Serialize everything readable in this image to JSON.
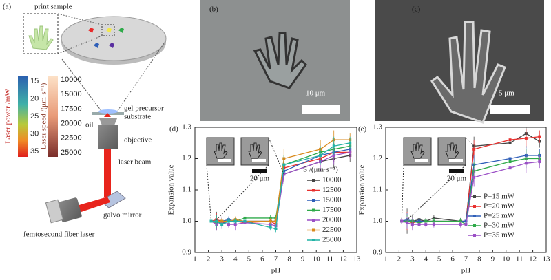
{
  "panel_a": {
    "label": "(a)",
    "print_sample": "print sample",
    "power_label": "Laser power /mW",
    "power_ticks": [
      15,
      20,
      25,
      30,
      35
    ],
    "speed_label": "Laser speed /(μm·s⁻¹)",
    "speed_ticks": [
      10000,
      15000,
      17500,
      20000,
      22500,
      25000
    ],
    "gel": "gel precursor",
    "substrate": "substrate",
    "oil": "oil",
    "objective": "objective",
    "beam": "laser beam",
    "galvo": "galvo mirror",
    "laser": "femtosecond fiber laser"
  },
  "panel_b": {
    "label": "(b)",
    "scale": "10 μm"
  },
  "panel_c": {
    "label": "(c)",
    "scale": "5 μm"
  },
  "chart_data": [
    {
      "type": "line",
      "panel": "(d)",
      "xlabel": "pH",
      "ylabel": "Expansion value",
      "legend_title": "S /(μm·s⁻¹)",
      "inset_scale": "20 μm",
      "x": [
        2.2,
        2.6,
        3.0,
        3.5,
        4.0,
        4.7,
        6.6,
        7.0,
        7.6,
        10.3,
        11.3,
        12.5
      ],
      "xlim": [
        1,
        13
      ],
      "xticks": [
        1,
        2,
        3,
        4,
        5,
        6,
        7,
        8,
        9,
        10,
        11,
        12,
        13
      ],
      "ylim": [
        0.9,
        1.3
      ],
      "yticks": [
        0.9,
        {
          "value": 1,
          "label": "1.0"
        },
        1.1,
        1.2,
        1.3
      ],
      "series": [
        {
          "name": "10000",
          "color": "#444444",
          "values": [
            1.0,
            1.0,
            0.995,
            1.0,
            1.0,
            1.0,
            1.0,
            1.0,
            1.15,
            1.19,
            1.2,
            1.21
          ],
          "errors": [
            0.01,
            0.03,
            0.01,
            0.01,
            0.01,
            0.01,
            0.01,
            0.01,
            0.03,
            0.03,
            0.03,
            0.02
          ]
        },
        {
          "name": "12500",
          "color": "#e8312f",
          "values": [
            1.0,
            1.005,
            1.0,
            1.0,
            1.0,
            0.995,
            1.0,
            0.99,
            1.17,
            1.2,
            1.22,
            1.22
          ],
          "errors": [
            0.01,
            0.02,
            0.01,
            0.01,
            0.01,
            0.01,
            0.01,
            0.01,
            0.03,
            0.03,
            0.03,
            0.02
          ]
        },
        {
          "name": "15000",
          "color": "#2f5fb8",
          "values": [
            1.0,
            1.0,
            1.0,
            1.005,
            1.0,
            1.0,
            1.0,
            1.0,
            1.16,
            1.21,
            1.22,
            1.23
          ],
          "errors": [
            0.01,
            0.02,
            0.01,
            0.01,
            0.01,
            0.01,
            0.01,
            0.01,
            0.03,
            0.03,
            0.03,
            0.02
          ]
        },
        {
          "name": "17500",
          "color": "#2faa4a",
          "values": [
            1.0,
            0.995,
            1.0,
            1.0,
            1.0,
            1.01,
            1.01,
            1.01,
            1.18,
            1.22,
            1.23,
            1.24
          ],
          "errors": [
            0.01,
            0.02,
            0.01,
            0.01,
            0.01,
            0.01,
            0.01,
            0.01,
            0.03,
            0.03,
            0.03,
            0.02
          ]
        },
        {
          "name": "20000",
          "color": "#9b4fc6",
          "values": [
            1.0,
            0.99,
            0.995,
            0.99,
            0.99,
            0.995,
            0.99,
            0.985,
            1.15,
            1.19,
            1.21,
            1.22
          ],
          "errors": [
            0.01,
            0.02,
            0.02,
            0.01,
            0.02,
            0.01,
            0.01,
            0.01,
            0.03,
            0.03,
            0.03,
            0.02
          ]
        },
        {
          "name": "22500",
          "color": "#d98a1c",
          "values": [
            1.0,
            1.0,
            1.0,
            1.0,
            1.005,
            1.0,
            1.0,
            1.0,
            1.2,
            1.23,
            1.26,
            1.26
          ],
          "errors": [
            0.01,
            0.02,
            0.01,
            0.01,
            0.01,
            0.01,
            0.01,
            0.01,
            0.03,
            0.03,
            0.03,
            0.02
          ]
        },
        {
          "name": "25000",
          "color": "#22b3a6",
          "values": [
            1.0,
            1.0,
            0.99,
            1.0,
            1.0,
            1.0,
            0.98,
            0.975,
            1.18,
            1.21,
            1.24,
            1.25
          ],
          "errors": [
            0.01,
            0.02,
            0.01,
            0.01,
            0.01,
            0.01,
            0.01,
            0.01,
            0.03,
            0.03,
            0.03,
            0.02
          ]
        }
      ]
    },
    {
      "type": "line",
      "panel": "(e)",
      "xlabel": "pH",
      "ylabel": "Expansion value",
      "inset_scale": "20 μm",
      "x": [
        2.2,
        2.6,
        3.0,
        3.5,
        4.0,
        4.6,
        6.6,
        7.0,
        7.6,
        10.3,
        11.5,
        12.5
      ],
      "xlim": [
        1,
        13
      ],
      "xticks": [
        1,
        2,
        3,
        4,
        5,
        6,
        7,
        8,
        9,
        10,
        11,
        12,
        13
      ],
      "ylim": [
        0.9,
        1.3
      ],
      "yticks": [
        0.9,
        {
          "value": 1,
          "label": "1.0"
        },
        1.1,
        1.2,
        1.3
      ],
      "series": [
        {
          "name": "P=15 mW",
          "color": "#444444",
          "values": [
            1.0,
            1.0,
            1.0,
            1.005,
            1.0,
            1.01,
            1.0,
            1.0,
            1.24,
            1.25,
            1.28,
            1.255
          ],
          "errors": [
            0.01,
            0.04,
            0.02,
            0.01,
            0.01,
            0.01,
            0.01,
            0.01,
            0.03,
            0.03,
            0.02,
            0.02
          ]
        },
        {
          "name": "P=20 mW",
          "color": "#e8312f",
          "values": [
            1.0,
            1.0,
            0.995,
            1.0,
            1.0,
            1.0,
            1.0,
            1.0,
            1.23,
            1.26,
            1.265,
            1.27
          ],
          "errors": [
            0.01,
            0.03,
            0.01,
            0.01,
            0.01,
            0.01,
            0.01,
            0.01,
            0.03,
            0.03,
            0.03,
            0.02
          ]
        },
        {
          "name": "P=25 mW",
          "color": "#2f5fb8",
          "values": [
            1.0,
            1.005,
            1.0,
            1.0,
            1.0,
            1.0,
            1.0,
            1.0,
            1.18,
            1.2,
            1.21,
            1.21
          ],
          "errors": [
            0.01,
            0.02,
            0.01,
            0.01,
            0.01,
            0.01,
            0.01,
            0.01,
            0.03,
            0.03,
            0.03,
            0.02
          ]
        },
        {
          "name": "P=30 mW",
          "color": "#2faa4a",
          "values": [
            1.0,
            1.0,
            1.0,
            0.995,
            1.0,
            1.0,
            1.0,
            0.99,
            1.16,
            1.19,
            1.2,
            1.2
          ],
          "errors": [
            0.01,
            0.02,
            0.01,
            0.01,
            0.01,
            0.01,
            0.01,
            0.01,
            0.03,
            0.03,
            0.03,
            0.02
          ]
        },
        {
          "name": "P=35 mW",
          "color": "#9b4fc6",
          "values": [
            1.0,
            0.995,
            0.99,
            0.99,
            0.99,
            0.99,
            0.99,
            0.99,
            1.14,
            1.17,
            1.185,
            1.19
          ],
          "errors": [
            0.01,
            0.02,
            0.02,
            0.01,
            0.01,
            0.01,
            0.01,
            0.01,
            0.03,
            0.03,
            0.03,
            0.02
          ]
        }
      ]
    }
  ]
}
